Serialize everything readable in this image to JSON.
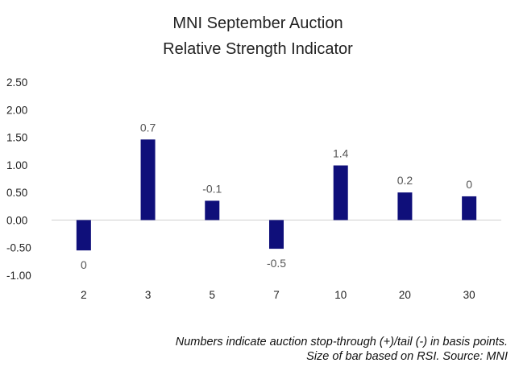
{
  "chart_data": {
    "type": "bar",
    "title_lines": [
      "MNI September Auction",
      "Relative Strength Indicator"
    ],
    "categories": [
      "2",
      "3",
      "5",
      "7",
      "10",
      "20",
      "30"
    ],
    "values": [
      -0.55,
      1.46,
      0.35,
      -0.52,
      0.99,
      0.5,
      0.43
    ],
    "data_labels": [
      "0",
      "0.7",
      "-0.1",
      "-0.5",
      "1.4",
      "0.2",
      "0"
    ],
    "y_ticks": [
      "2.50",
      "2.00",
      "1.50",
      "1.00",
      "0.50",
      "0.00",
      "-0.50",
      "-1.00"
    ],
    "ylim": [
      -1.0,
      2.5
    ],
    "bar_color": "#0f0f7a",
    "xlabel": "",
    "ylabel": "",
    "grid": false
  },
  "caption": {
    "line1": "Numbers indicate auction stop-through (+)/tail (-) in basis points.",
    "line2": "Size of bar based on RSI. Source: MNI"
  }
}
